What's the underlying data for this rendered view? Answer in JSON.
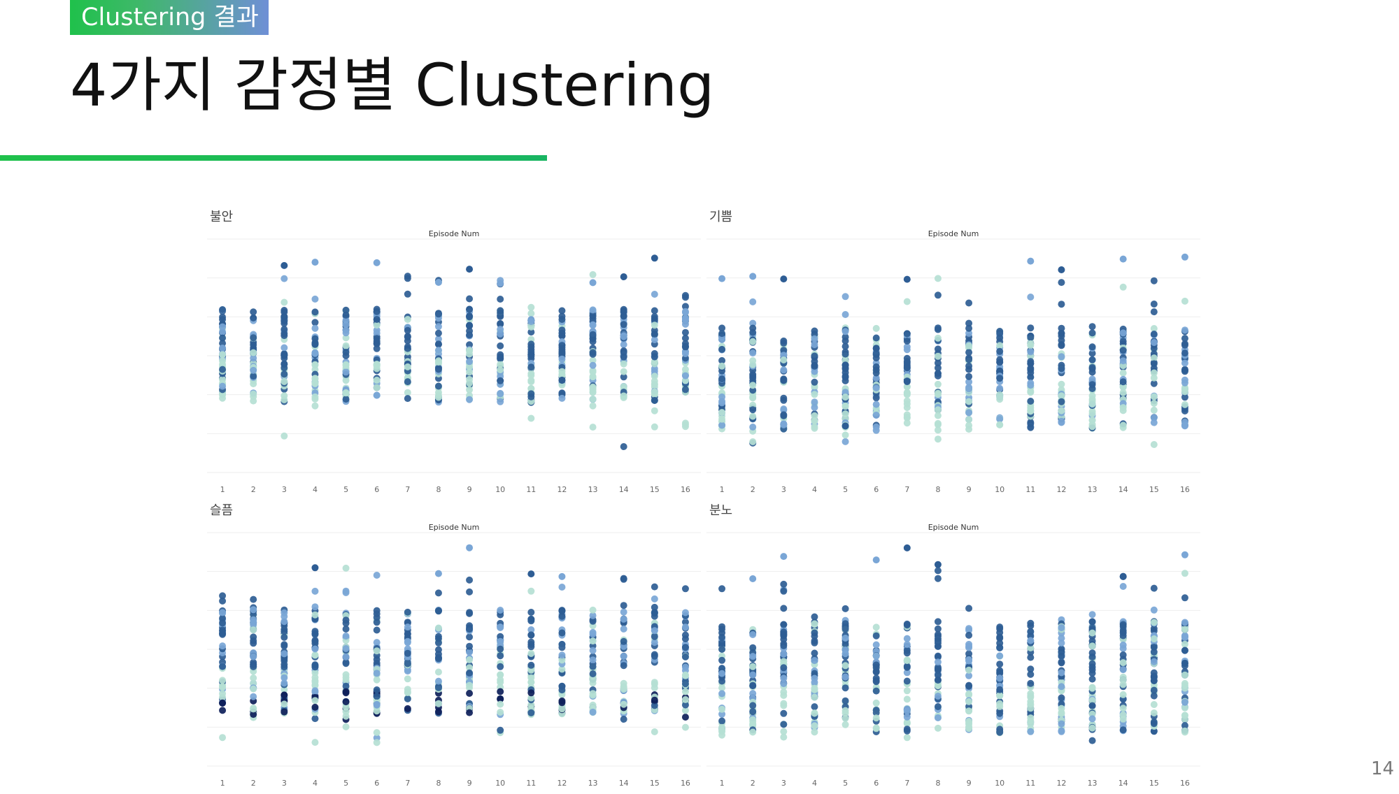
{
  "header": {
    "tag": "Clustering 결과",
    "title": "4가지 감정별 Clustering",
    "page_number": "14"
  },
  "chart_data": [
    {
      "type": "scatter",
      "title": "불안",
      "xlabel": "Episode Num",
      "categories": [
        "1",
        "2",
        "3",
        "4",
        "5",
        "6",
        "7",
        "8",
        "9",
        "10",
        "11",
        "12",
        "13",
        "14",
        "15",
        "16"
      ],
      "grid": true,
      "series": [
        {
          "name": "",
          "values": [
            [
              1,
              2,
              3,
              4,
              5,
              6,
              7,
              8,
              9,
              10,
              11,
              12,
              13,
              14,
              15,
              16
            ]
          ]
        }
      ]
    },
    {
      "type": "scatter",
      "title": "기쁨",
      "xlabel": "Episode Num",
      "categories": [
        "1",
        "2",
        "3",
        "4",
        "5",
        "6",
        "7",
        "8",
        "9",
        "10",
        "11",
        "12",
        "13",
        "14",
        "15",
        "16"
      ],
      "grid": true
    },
    {
      "type": "scatter",
      "title": "슬픔",
      "xlabel": "Episode Num",
      "categories": [
        "1",
        "2",
        "3",
        "4",
        "5",
        "6",
        "7",
        "8",
        "9",
        "10",
        "11",
        "12",
        "13",
        "14",
        "15",
        "16"
      ],
      "grid": true
    },
    {
      "type": "scatter",
      "title": "분노",
      "xlabel": "Episode Num",
      "categories": [
        "1",
        "2",
        "3",
        "4",
        "5",
        "6",
        "7",
        "8",
        "9",
        "10",
        "11",
        "12",
        "13",
        "14",
        "15",
        "16"
      ],
      "grid": true
    }
  ],
  "colors": {
    "cluster_1": "#2e5d94",
    "cluster_2": "#7aa6d6",
    "cluster_3": "#b5dfd4",
    "cluster_4": "#0e1f5a"
  }
}
